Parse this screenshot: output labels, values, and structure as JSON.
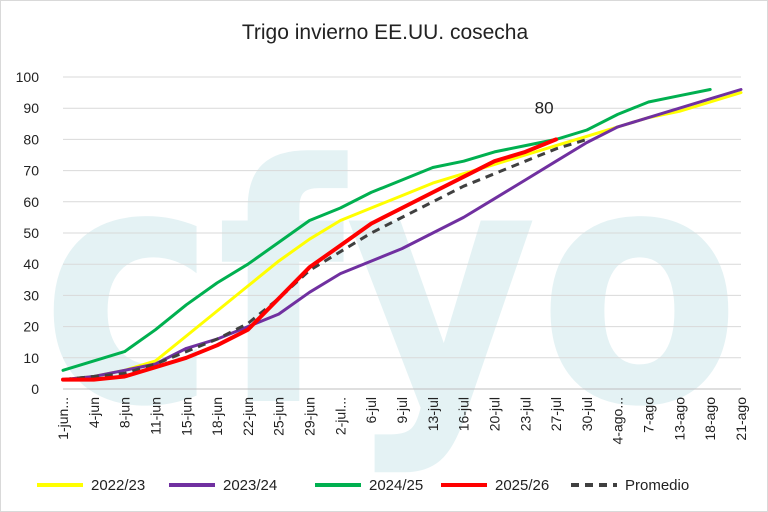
{
  "chart_data": {
    "type": "line",
    "title": "Trigo invierno EE.UU. cosecha",
    "xlabel": "",
    "ylabel": "",
    "ylim": [
      0,
      100
    ],
    "y_ticks": [
      "0",
      "10",
      "20",
      "30",
      "40",
      "50",
      "60",
      "70",
      "80",
      "90",
      "100"
    ],
    "categories": [
      "1-jun...",
      "4-jun",
      "8-jun",
      "11-jun",
      "15-jun",
      "18-jun",
      "22-jun",
      "25-jun",
      "29-jun",
      "2-jul...",
      "6-jul",
      "9-jul",
      "13-jul",
      "16-jul",
      "20-jul",
      "23-jul",
      "27-jul",
      "30-jul",
      "4-ago...",
      "7-ago",
      "13-ago",
      "18-ago",
      "21-ago"
    ],
    "grid": "horizontal",
    "legend_position": "bottom",
    "series": [
      {
        "name": "2022/23",
        "color": "#ffff00",
        "dash": "solid",
        "values": [
          3,
          4,
          6,
          9,
          17,
          25,
          33,
          41,
          48,
          54,
          58,
          62,
          66,
          69,
          72,
          75,
          78,
          81,
          84,
          87,
          89,
          92,
          95
        ]
      },
      {
        "name": "2023/24",
        "color": "#7030a0",
        "dash": "solid",
        "values": [
          3,
          4,
          6,
          8,
          13,
          16,
          20,
          24,
          31,
          37,
          41,
          45,
          50,
          55,
          61,
          67,
          73,
          79,
          84,
          87,
          90,
          93,
          96
        ]
      },
      {
        "name": "2024/25",
        "color": "#00b050",
        "dash": "solid",
        "values": [
          6,
          9,
          12,
          19,
          27,
          34,
          40,
          47,
          54,
          58,
          63,
          67,
          71,
          73,
          76,
          78,
          80,
          83,
          88,
          92,
          94,
          96,
          null
        ]
      },
      {
        "name": "2025/26",
        "color": "#ff0000",
        "dash": "solid",
        "values": [
          3,
          3,
          4,
          7,
          10,
          14,
          19,
          29,
          39,
          46,
          53,
          58,
          63,
          68,
          73,
          76,
          80,
          null,
          null,
          null,
          null,
          null,
          null
        ]
      },
      {
        "name": "Promedio",
        "color": "#404040",
        "dash": "dashed",
        "values": [
          3,
          4,
          5,
          8,
          12,
          16,
          21,
          29,
          38,
          44,
          50,
          55,
          60,
          65,
          69,
          73,
          77,
          80,
          null,
          null,
          null,
          null,
          null
        ]
      }
    ],
    "annotations": [
      {
        "text": "80",
        "series": "2025/26",
        "category": "27-jul"
      }
    ]
  },
  "watermark": "cfyo",
  "watermark_color": "#cfe9ec"
}
